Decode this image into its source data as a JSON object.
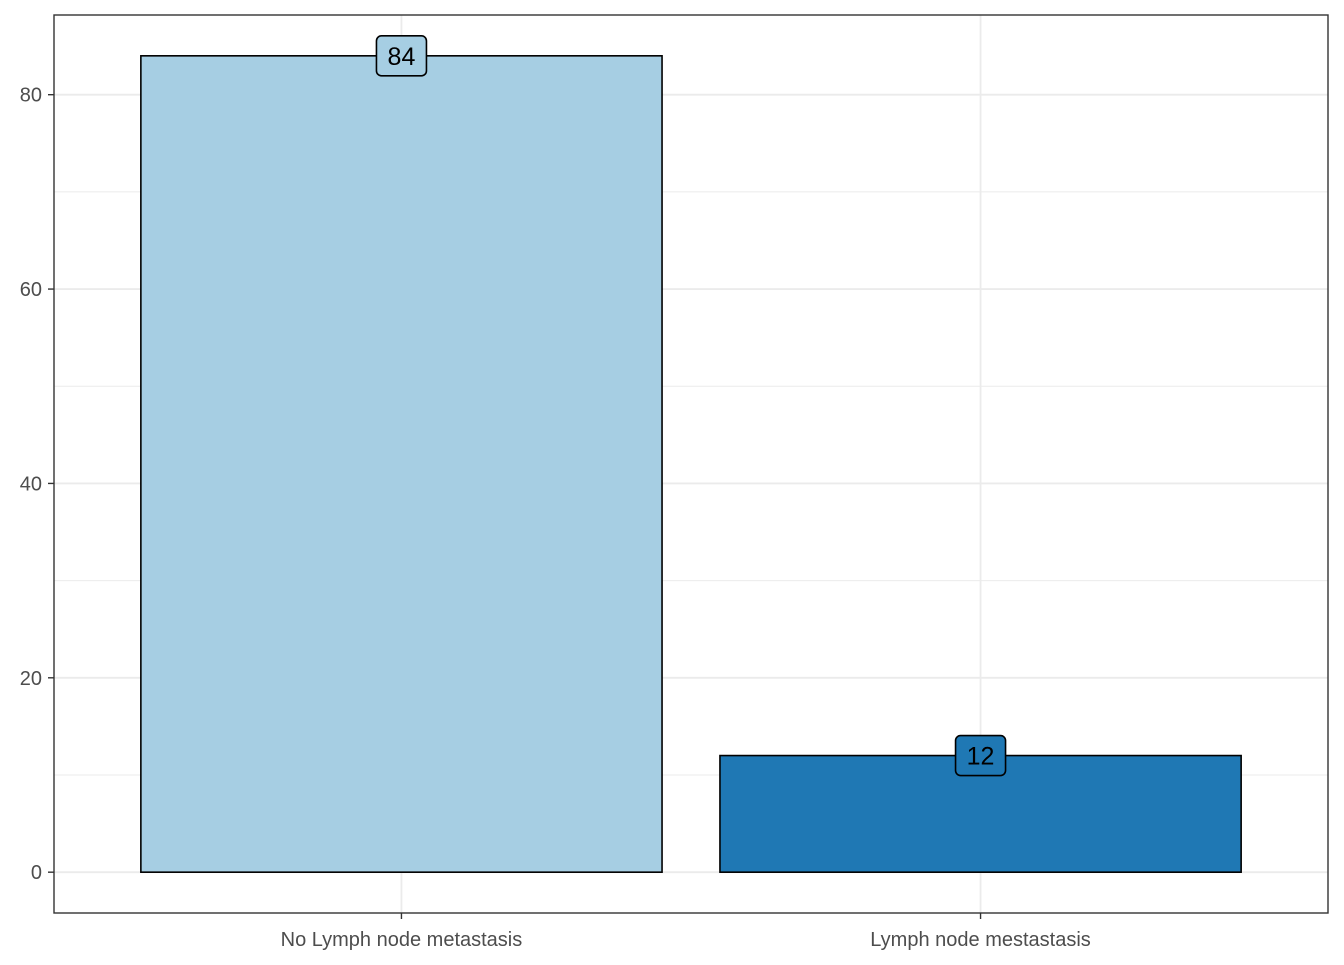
{
  "chart_data": {
    "type": "bar",
    "title": "",
    "xlabel": "",
    "ylabel": "",
    "categories": [
      "No Lymph node metastasis",
      "Lymph node mestastasis"
    ],
    "values": [
      84,
      12
    ],
    "data_labels": [
      "84",
      "12"
    ],
    "colors": [
      "#a6cee3",
      "#1f78b4"
    ],
    "ylim": [
      -4.2,
      88.2
    ],
    "y_ticks": [
      0,
      20,
      40,
      60,
      80
    ],
    "y_tick_labels": [
      "0",
      "20",
      "40",
      "60",
      "80"
    ],
    "grid": true,
    "legend": false
  }
}
